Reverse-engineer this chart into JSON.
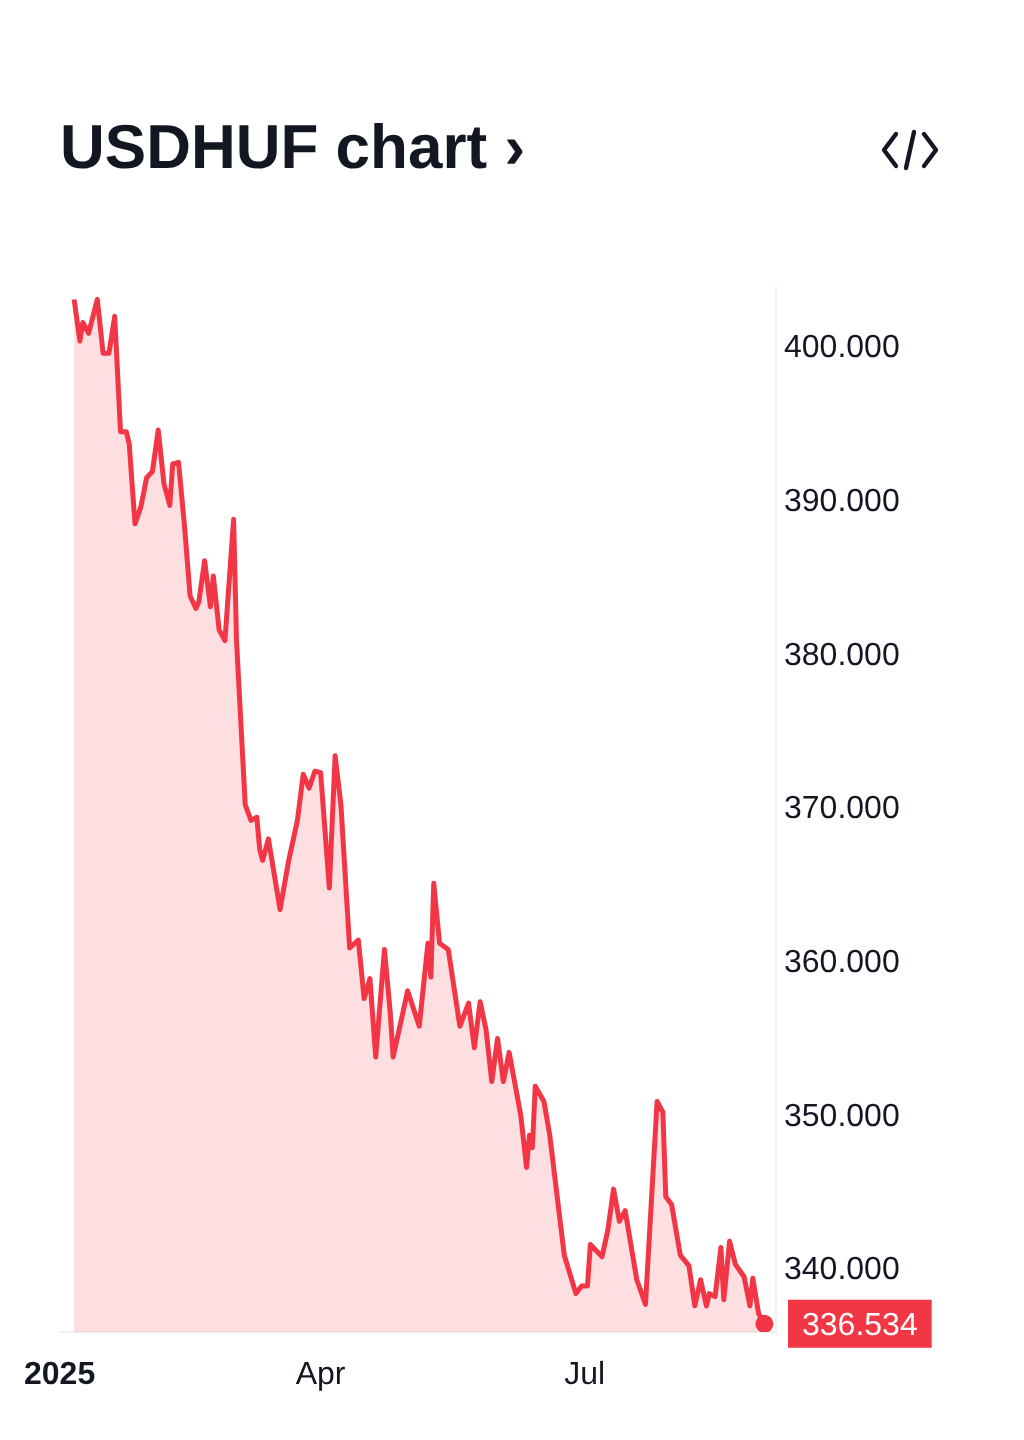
{
  "chart_data": {
    "type": "area",
    "title": "USDHUF chart ›",
    "color": "#f23645",
    "grid": false,
    "legend": false,
    "x": [
      "2025-01-06",
      "2025-01-08",
      "2025-01-09",
      "2025-01-11",
      "2025-01-14",
      "2025-01-16",
      "2025-01-18",
      "2025-01-20",
      "2025-01-22",
      "2025-01-24",
      "2025-01-25",
      "2025-01-27",
      "2025-01-29",
      "2025-01-31",
      "2025-02-02",
      "2025-02-04",
      "2025-02-06",
      "2025-02-08",
      "2025-02-09",
      "2025-02-11",
      "2025-02-13",
      "2025-02-15",
      "2025-02-17",
      "2025-02-18",
      "2025-02-20",
      "2025-02-22",
      "2025-02-23",
      "2025-02-25",
      "2025-02-27",
      "2025-03-02",
      "2025-03-03",
      "2025-03-06",
      "2025-03-08",
      "2025-03-10",
      "2025-03-11",
      "2025-03-12",
      "2025-03-14",
      "2025-03-18",
      "2025-03-21",
      "2025-03-24",
      "2025-03-26",
      "2025-03-28",
      "2025-03-30",
      "2025-04-01",
      "2025-04-04",
      "2025-04-06",
      "2025-04-08",
      "2025-04-11",
      "2025-04-14",
      "2025-04-16",
      "2025-04-18",
      "2025-04-20",
      "2025-04-23",
      "2025-04-25",
      "2025-04-26",
      "2025-05-01",
      "2025-05-05",
      "2025-05-08",
      "2025-05-09",
      "2025-05-10",
      "2025-05-12",
      "2025-05-15",
      "2025-05-19",
      "2025-05-22",
      "2025-05-24",
      "2025-05-26",
      "2025-05-28",
      "2025-05-30",
      "2025-06-01",
      "2025-06-03",
      "2025-06-05",
      "2025-06-09",
      "2025-06-11",
      "2025-06-12",
      "2025-06-13",
      "2025-06-14",
      "2025-06-17",
      "2025-06-19",
      "2025-06-24",
      "2025-06-28",
      "2025-06-30",
      "2025-07-02",
      "2025-07-03",
      "2025-07-07",
      "2025-07-09",
      "2025-07-11",
      "2025-07-13",
      "2025-07-15",
      "2025-07-19",
      "2025-07-22",
      "2025-07-26",
      "2025-07-28",
      "2025-07-29",
      "2025-07-31",
      "2025-08-03",
      "2025-08-06",
      "2025-08-08",
      "2025-08-10",
      "2025-08-12",
      "2025-08-13",
      "2025-08-15",
      "2025-08-17",
      "2025-08-18",
      "2025-08-20",
      "2025-08-22",
      "2025-08-25",
      "2025-08-27",
      "2025-08-28",
      "2025-08-30",
      "2025-09-01"
    ],
    "values": [
      403.2,
      400.5,
      401.7,
      401.0,
      403.2,
      399.7,
      399.7,
      402.1,
      394.6,
      394.6,
      393.8,
      388.6,
      389.7,
      391.6,
      392.0,
      394.7,
      391.2,
      389.8,
      392.5,
      392.6,
      388.6,
      383.9,
      383.1,
      383.5,
      386.2,
      383.2,
      385.2,
      381.7,
      381.0,
      388.9,
      381.0,
      370.3,
      369.3,
      369.5,
      367.4,
      366.7,
      368.1,
      363.5,
      366.7,
      369.3,
      372.3,
      371.4,
      372.5,
      372.4,
      364.9,
      373.5,
      370.3,
      361.0,
      361.5,
      357.7,
      359.0,
      353.9,
      360.9,
      356.8,
      353.9,
      358.2,
      355.9,
      361.3,
      359.1,
      365.2,
      361.3,
      360.9,
      355.9,
      357.4,
      354.5,
      357.5,
      355.7,
      352.3,
      355.1,
      352.3,
      354.2,
      350.1,
      346.7,
      348.8,
      348.0,
      352.0,
      351.0,
      348.8,
      341.0,
      338.5,
      339.0,
      339.0,
      341.7,
      340.9,
      342.6,
      345.3,
      343.2,
      343.9,
      339.4,
      337.8,
      351.0,
      350.3,
      344.8,
      344.3,
      341.0,
      340.3,
      337.7,
      339.4,
      337.7,
      338.5,
      338.3,
      341.5,
      338.1,
      341.9,
      340.4,
      339.6,
      337.7,
      339.5,
      337.2,
      336.534
    ],
    "xlim": [
      "2025-01-01",
      "2025-09-05"
    ],
    "ylim": [
      336,
      404
    ],
    "xticks": [
      {
        "value": "2025-01-01",
        "label": "2025"
      },
      {
        "value": "2025-04-01",
        "label": "Apr"
      },
      {
        "value": "2025-07-01",
        "label": "Jul"
      }
    ],
    "yticks": [
      {
        "value": 340,
        "label": "340.000"
      },
      {
        "value": 350,
        "label": "350.000"
      },
      {
        "value": 360,
        "label": "360.000"
      },
      {
        "value": 370,
        "label": "370.000"
      },
      {
        "value": 380,
        "label": "380.000"
      },
      {
        "value": 390,
        "label": "390.000"
      },
      {
        "value": 400,
        "label": "400.000"
      }
    ],
    "annotations": [
      {
        "text": "336.534",
        "x": "2025-09-01",
        "y": 336.534
      }
    ]
  }
}
